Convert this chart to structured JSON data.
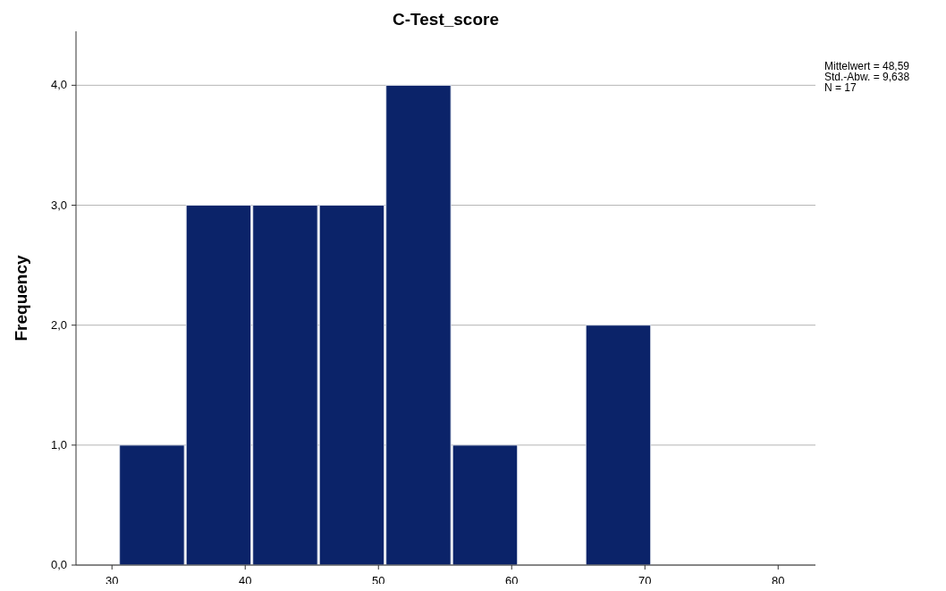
{
  "chart_data": {
    "type": "histogram",
    "title": "C-Test_score",
    "ylabel": "Frequency",
    "bins": [
      30.5,
      35.5,
      40.5,
      45.5,
      50.5,
      55.5,
      60.5,
      65.5,
      70.5
    ],
    "values": [
      1,
      3,
      3,
      3,
      4,
      1,
      0,
      2
    ],
    "color": "#0b2369",
    "xlim": [
      27.3,
      82.8
    ],
    "xticks": [
      30,
      40,
      50,
      60,
      70,
      80
    ],
    "ylim": [
      0,
      4.45
    ],
    "yticks": [
      {
        "value": 0,
        "label": "0,0"
      },
      {
        "value": 1,
        "label": "1,0"
      },
      {
        "value": 2,
        "label": "2,0"
      },
      {
        "value": 3,
        "label": "3,0"
      },
      {
        "value": 4,
        "label": "4,0"
      }
    ],
    "grid": "y",
    "annotations": [
      "Mittelwert = 48,59",
      "Std.-Abw. = 9,638",
      "N = 17"
    ]
  }
}
